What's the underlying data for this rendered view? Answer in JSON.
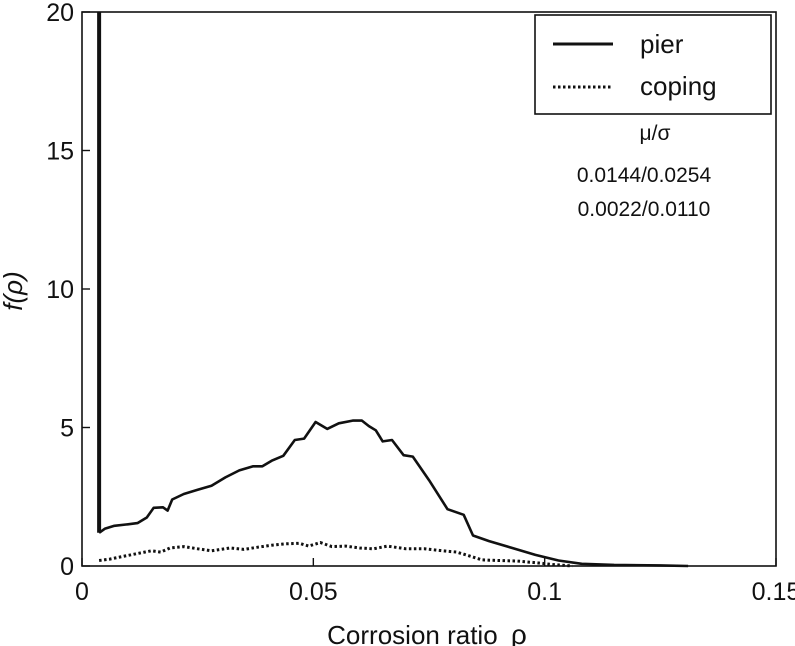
{
  "chart_data": {
    "type": "line",
    "xlabel": "Corrosion ratio ",
    "xlabel_symbol": "ρ",
    "ylabel": "f(ρ)",
    "xlim": [
      0,
      0.15
    ],
    "ylim": [
      0,
      20
    ],
    "x_ticks": [
      0,
      0.05,
      0.1,
      0.15
    ],
    "x_tick_labels": [
      "0",
      "0.05",
      "0.1",
      "0.15"
    ],
    "y_ticks": [
      0,
      5,
      10,
      15,
      20
    ],
    "y_tick_labels": [
      "0",
      "5",
      "10",
      "15",
      "20"
    ],
    "legend_position": "top-right",
    "stats_header": "μ/σ",
    "series": [
      {
        "name": "pier",
        "style": "solid",
        "stat": "0.0144/0.0254",
        "spike": {
          "x": 0.0037,
          "from": 1.2,
          "to": 20
        },
        "points": [
          [
            0.0037,
            1.2
          ],
          [
            0.005,
            1.35
          ],
          [
            0.007,
            1.45
          ],
          [
            0.0095,
            1.5
          ],
          [
            0.012,
            1.55
          ],
          [
            0.014,
            1.75
          ],
          [
            0.0155,
            2.1
          ],
          [
            0.0175,
            2.12
          ],
          [
            0.0185,
            2.0
          ],
          [
            0.0195,
            2.4
          ],
          [
            0.022,
            2.6
          ],
          [
            0.025,
            2.75
          ],
          [
            0.028,
            2.9
          ],
          [
            0.031,
            3.2
          ],
          [
            0.034,
            3.45
          ],
          [
            0.037,
            3.6
          ],
          [
            0.039,
            3.6
          ],
          [
            0.041,
            3.8
          ],
          [
            0.0435,
            3.98
          ],
          [
            0.046,
            4.55
          ],
          [
            0.048,
            4.6
          ],
          [
            0.0505,
            5.2
          ],
          [
            0.053,
            4.95
          ],
          [
            0.0555,
            5.15
          ],
          [
            0.0585,
            5.25
          ],
          [
            0.0605,
            5.25
          ],
          [
            0.062,
            5.05
          ],
          [
            0.0635,
            4.9
          ],
          [
            0.065,
            4.5
          ],
          [
            0.067,
            4.55
          ],
          [
            0.0695,
            4.0
          ],
          [
            0.0715,
            3.95
          ],
          [
            0.075,
            3.1
          ],
          [
            0.079,
            2.05
          ],
          [
            0.0825,
            1.85
          ],
          [
            0.0845,
            1.1
          ],
          [
            0.088,
            0.9
          ],
          [
            0.093,
            0.65
          ],
          [
            0.098,
            0.4
          ],
          [
            0.103,
            0.2
          ],
          [
            0.108,
            0.08
          ],
          [
            0.115,
            0.04
          ],
          [
            0.125,
            0.02
          ],
          [
            0.131,
            0.0
          ]
        ]
      },
      {
        "name": "coping",
        "style": "dotted",
        "stat": "0.0022/0.0110",
        "points": [
          [
            0.0037,
            0.2
          ],
          [
            0.006,
            0.25
          ],
          [
            0.009,
            0.35
          ],
          [
            0.012,
            0.45
          ],
          [
            0.015,
            0.55
          ],
          [
            0.017,
            0.5
          ],
          [
            0.019,
            0.65
          ],
          [
            0.022,
            0.7
          ],
          [
            0.025,
            0.62
          ],
          [
            0.028,
            0.55
          ],
          [
            0.032,
            0.65
          ],
          [
            0.035,
            0.6
          ],
          [
            0.038,
            0.68
          ],
          [
            0.041,
            0.75
          ],
          [
            0.044,
            0.8
          ],
          [
            0.047,
            0.82
          ],
          [
            0.049,
            0.72
          ],
          [
            0.0515,
            0.85
          ],
          [
            0.054,
            0.7
          ],
          [
            0.057,
            0.72
          ],
          [
            0.06,
            0.65
          ],
          [
            0.063,
            0.62
          ],
          [
            0.066,
            0.72
          ],
          [
            0.07,
            0.62
          ],
          [
            0.074,
            0.62
          ],
          [
            0.078,
            0.55
          ],
          [
            0.081,
            0.5
          ],
          [
            0.084,
            0.35
          ],
          [
            0.0865,
            0.22
          ],
          [
            0.09,
            0.2
          ],
          [
            0.094,
            0.18
          ],
          [
            0.098,
            0.12
          ],
          [
            0.102,
            0.05
          ],
          [
            0.106,
            0.0
          ]
        ]
      }
    ]
  }
}
